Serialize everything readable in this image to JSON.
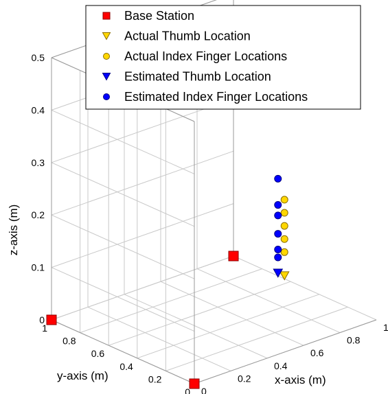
{
  "chart_data": {
    "type": "scatter",
    "projection": "3d",
    "title": "",
    "xlabel": "x-axis (m)",
    "ylabel": "y-axis (m)",
    "zlabel": "z-axis (m)",
    "xlim": [
      0,
      1
    ],
    "ylim": [
      0,
      1
    ],
    "zlim": [
      0,
      0.5
    ],
    "xticks": [
      0,
      0.2,
      0.4,
      0.6,
      0.8,
      1
    ],
    "yticks": [
      0,
      0.2,
      0.4,
      0.6,
      0.8,
      1
    ],
    "zticks": [
      0,
      0.1,
      0.2,
      0.3,
      0.4,
      0.5
    ],
    "x_tick_labels": [
      "0",
      "0.2",
      "0.4",
      "0.6",
      "0.8",
      "1"
    ],
    "y_tick_labels": [
      "0",
      "0.2",
      "0.4",
      "0.6",
      "0.8",
      "1"
    ],
    "z_tick_labels": [
      "0",
      "0.1",
      "0.2",
      "0.3",
      "0.4",
      "0.5"
    ],
    "grid": true,
    "legend_position": "top",
    "series": [
      {
        "name": "Base Station",
        "marker": "square",
        "color": "#ff0000",
        "edge": "#8b0000",
        "points": [
          [
            0,
            1,
            0
          ],
          [
            0,
            0,
            0
          ],
          [
            1,
            1,
            0
          ]
        ]
      },
      {
        "name": "Actual Thumb Location",
        "marker": "triangle-down",
        "color": "#ffd700",
        "edge": "#8a6d00",
        "points": [
          [
            0.66,
            0.21,
            0.1
          ]
        ]
      },
      {
        "name": "Actual Index Finger Locations",
        "marker": "circle",
        "color": "#ffd700",
        "edge": "#8a6d00",
        "points": [
          [
            0.66,
            0.21,
            0.145
          ],
          [
            0.66,
            0.21,
            0.17
          ],
          [
            0.66,
            0.21,
            0.195
          ],
          [
            0.66,
            0.21,
            0.22
          ],
          [
            0.66,
            0.21,
            0.245
          ]
        ]
      },
      {
        "name": "Estimated Thumb Location",
        "marker": "triangle-down",
        "color": "#0000ff",
        "edge": "#000080",
        "points": [
          [
            0.64,
            0.23,
            0.105
          ]
        ]
      },
      {
        "name": "Estimated Index Finger Locations",
        "marker": "circle",
        "color": "#0000ff",
        "edge": "#000080",
        "points": [
          [
            0.64,
            0.23,
            0.135
          ],
          [
            0.64,
            0.23,
            0.15
          ],
          [
            0.64,
            0.23,
            0.18
          ],
          [
            0.64,
            0.23,
            0.215
          ],
          [
            0.64,
            0.23,
            0.235
          ],
          [
            0.64,
            0.23,
            0.285
          ]
        ]
      }
    ]
  }
}
